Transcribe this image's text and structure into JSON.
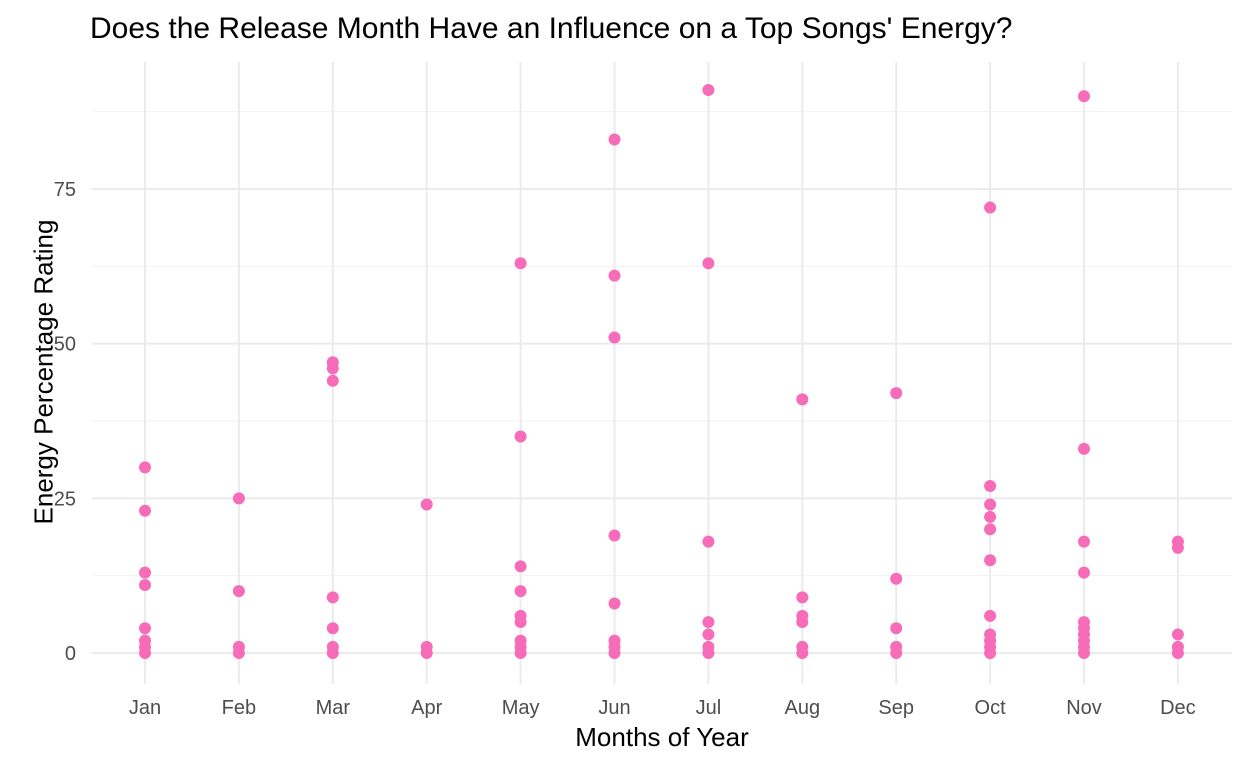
{
  "chart_data": {
    "type": "scatter",
    "title": "Does the Release Month Have an Influence on a Top Songs' Energy?",
    "xlabel": "Months of Year",
    "ylabel": "Energy Percentage Rating",
    "categories": [
      "Jan",
      "Feb",
      "Mar",
      "Apr",
      "May",
      "Jun",
      "Jul",
      "Aug",
      "Sep",
      "Oct",
      "Nov",
      "Dec"
    ],
    "yticks": [
      0,
      25,
      50,
      75
    ],
    "ylim": [
      -5,
      95
    ],
    "grid": true,
    "point_color": "#f76cb9",
    "points": [
      {
        "x": "Jan",
        "y": 30
      },
      {
        "x": "Jan",
        "y": 23
      },
      {
        "x": "Jan",
        "y": 13
      },
      {
        "x": "Jan",
        "y": 11
      },
      {
        "x": "Jan",
        "y": 4
      },
      {
        "x": "Jan",
        "y": 2
      },
      {
        "x": "Jan",
        "y": 1
      },
      {
        "x": "Jan",
        "y": 0
      },
      {
        "x": "Feb",
        "y": 25
      },
      {
        "x": "Feb",
        "y": 10
      },
      {
        "x": "Feb",
        "y": 1
      },
      {
        "x": "Feb",
        "y": 0
      },
      {
        "x": "Mar",
        "y": 47
      },
      {
        "x": "Mar",
        "y": 46
      },
      {
        "x": "Mar",
        "y": 44
      },
      {
        "x": "Mar",
        "y": 9
      },
      {
        "x": "Mar",
        "y": 4
      },
      {
        "x": "Mar",
        "y": 1
      },
      {
        "x": "Mar",
        "y": 0
      },
      {
        "x": "Apr",
        "y": 24
      },
      {
        "x": "Apr",
        "y": 1
      },
      {
        "x": "Apr",
        "y": 0
      },
      {
        "x": "May",
        "y": 63
      },
      {
        "x": "May",
        "y": 35
      },
      {
        "x": "May",
        "y": 14
      },
      {
        "x": "May",
        "y": 10
      },
      {
        "x": "May",
        "y": 6
      },
      {
        "x": "May",
        "y": 5
      },
      {
        "x": "May",
        "y": 2
      },
      {
        "x": "May",
        "y": 1
      },
      {
        "x": "May",
        "y": 0
      },
      {
        "x": "Jun",
        "y": 83
      },
      {
        "x": "Jun",
        "y": 61
      },
      {
        "x": "Jun",
        "y": 51
      },
      {
        "x": "Jun",
        "y": 19
      },
      {
        "x": "Jun",
        "y": 8
      },
      {
        "x": "Jun",
        "y": 2
      },
      {
        "x": "Jun",
        "y": 1
      },
      {
        "x": "Jun",
        "y": 0
      },
      {
        "x": "Jul",
        "y": 91
      },
      {
        "x": "Jul",
        "y": 63
      },
      {
        "x": "Jul",
        "y": 18
      },
      {
        "x": "Jul",
        "y": 5
      },
      {
        "x": "Jul",
        "y": 3
      },
      {
        "x": "Jul",
        "y": 1
      },
      {
        "x": "Jul",
        "y": 0
      },
      {
        "x": "Aug",
        "y": 41
      },
      {
        "x": "Aug",
        "y": 9
      },
      {
        "x": "Aug",
        "y": 6
      },
      {
        "x": "Aug",
        "y": 5
      },
      {
        "x": "Aug",
        "y": 1
      },
      {
        "x": "Aug",
        "y": 0
      },
      {
        "x": "Sep",
        "y": 42
      },
      {
        "x": "Sep",
        "y": 12
      },
      {
        "x": "Sep",
        "y": 4
      },
      {
        "x": "Sep",
        "y": 1
      },
      {
        "x": "Sep",
        "y": 0
      },
      {
        "x": "Oct",
        "y": 72
      },
      {
        "x": "Oct",
        "y": 27
      },
      {
        "x": "Oct",
        "y": 24
      },
      {
        "x": "Oct",
        "y": 22
      },
      {
        "x": "Oct",
        "y": 20
      },
      {
        "x": "Oct",
        "y": 15
      },
      {
        "x": "Oct",
        "y": 6
      },
      {
        "x": "Oct",
        "y": 3
      },
      {
        "x": "Oct",
        "y": 2
      },
      {
        "x": "Oct",
        "y": 1
      },
      {
        "x": "Oct",
        "y": 0
      },
      {
        "x": "Nov",
        "y": 90
      },
      {
        "x": "Nov",
        "y": 33
      },
      {
        "x": "Nov",
        "y": 18
      },
      {
        "x": "Nov",
        "y": 13
      },
      {
        "x": "Nov",
        "y": 5
      },
      {
        "x": "Nov",
        "y": 4
      },
      {
        "x": "Nov",
        "y": 3
      },
      {
        "x": "Nov",
        "y": 2
      },
      {
        "x": "Nov",
        "y": 1
      },
      {
        "x": "Nov",
        "y": 0
      },
      {
        "x": "Dec",
        "y": 18
      },
      {
        "x": "Dec",
        "y": 17
      },
      {
        "x": "Dec",
        "y": 3
      },
      {
        "x": "Dec",
        "y": 1
      },
      {
        "x": "Dec",
        "y": 0
      }
    ]
  }
}
